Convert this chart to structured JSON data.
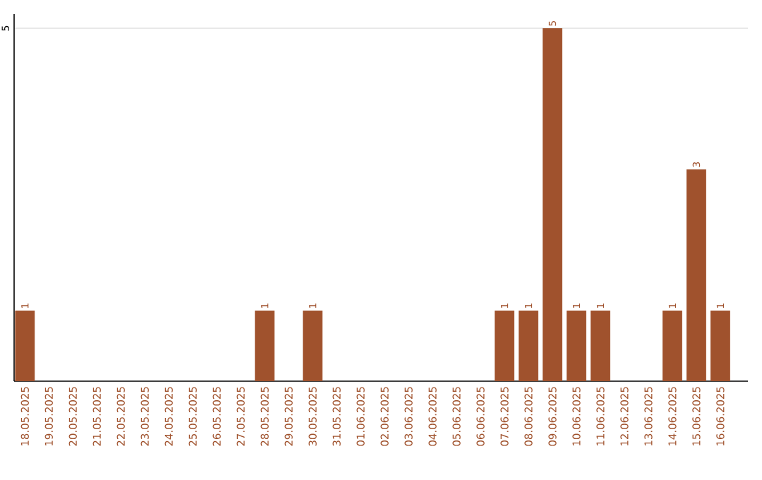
{
  "chart_data": {
    "type": "bar",
    "categories": [
      "18.05.2025",
      "19.05.2025",
      "20.05.2025",
      "21.05.2025",
      "22.05.2025",
      "23.05.2025",
      "24.05.2025",
      "25.05.2025",
      "26.05.2025",
      "27.05.2025",
      "28.05.2025",
      "29.05.2025",
      "30.05.2025",
      "31.05.2025",
      "01.06.2025",
      "02.06.2025",
      "03.06.2025",
      "04.06.2025",
      "05.06.2025",
      "06.06.2025",
      "07.06.2025",
      "08.06.2025",
      "09.06.2025",
      "10.06.2025",
      "11.06.2025",
      "12.06.2025",
      "13.06.2025",
      "14.06.2025",
      "15.06.2025",
      "16.06.2025"
    ],
    "values": [
      1,
      0,
      0,
      0,
      0,
      0,
      0,
      0,
      0,
      0,
      1,
      0,
      1,
      0,
      0,
      0,
      0,
      0,
      0,
      0,
      1,
      1,
      5,
      1,
      1,
      0,
      0,
      1,
      3,
      1
    ],
    "value_labels": [
      "1",
      null,
      null,
      null,
      null,
      null,
      null,
      null,
      null,
      null,
      "1",
      null,
      "1",
      null,
      null,
      null,
      null,
      null,
      null,
      null,
      "1",
      "1",
      "5",
      "1",
      "1",
      null,
      null,
      "1",
      "3",
      "1"
    ],
    "color": "#a0522d",
    "ylim": [
      0,
      5.2
    ],
    "yticks": [
      5
    ],
    "grid": "y"
  }
}
